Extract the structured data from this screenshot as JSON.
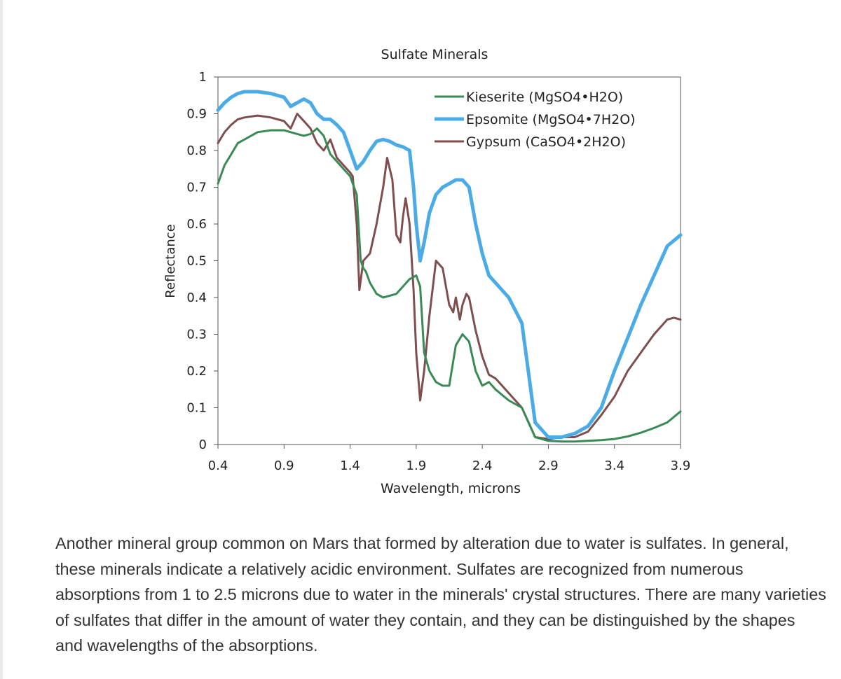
{
  "chart_data": {
    "type": "line",
    "title": "Sulfate Minerals",
    "xlabel": "Wavelength, microns",
    "ylabel": "Reflectance",
    "xlim": [
      0.4,
      3.9
    ],
    "ylim": [
      0,
      1
    ],
    "xticks": [
      0.4,
      0.9,
      1.4,
      1.9,
      2.4,
      2.9,
      3.4,
      3.9
    ],
    "xtick_labels": [
      "0.4",
      "0.9",
      "1.4",
      "1.9",
      "2.4",
      "2.9",
      "3.4",
      "3.9"
    ],
    "yticks": [
      0,
      0.1,
      0.2,
      0.3,
      0.4,
      0.5,
      0.6,
      0.7,
      0.8,
      0.9,
      1
    ],
    "ytick_labels": [
      "0",
      "0.1",
      "0.2",
      "0.3",
      "0.4",
      "0.5",
      "0.6",
      "0.7",
      "0.8",
      "0.9",
      "1"
    ],
    "grid": false,
    "legend_position": "top-right",
    "series": [
      {
        "name": "Kieserite (MgSO4•H2O)",
        "color": "#3a8a55",
        "x": [
          0.4,
          0.45,
          0.5,
          0.55,
          0.6,
          0.7,
          0.8,
          0.9,
          0.95,
          1.0,
          1.05,
          1.1,
          1.15,
          1.2,
          1.25,
          1.3,
          1.35,
          1.4,
          1.45,
          1.48,
          1.5,
          1.52,
          1.55,
          1.6,
          1.65,
          1.7,
          1.75,
          1.8,
          1.85,
          1.9,
          1.93,
          1.96,
          2.0,
          2.05,
          2.1,
          2.15,
          2.2,
          2.25,
          2.3,
          2.35,
          2.4,
          2.45,
          2.5,
          2.6,
          2.7,
          2.8,
          2.9,
          3.0,
          3.1,
          3.2,
          3.3,
          3.4,
          3.5,
          3.6,
          3.7,
          3.8,
          3.9
        ],
        "y": [
          0.71,
          0.76,
          0.79,
          0.82,
          0.83,
          0.85,
          0.855,
          0.855,
          0.85,
          0.845,
          0.84,
          0.845,
          0.86,
          0.84,
          0.79,
          0.77,
          0.75,
          0.73,
          0.68,
          0.5,
          0.48,
          0.47,
          0.44,
          0.41,
          0.4,
          0.405,
          0.41,
          0.43,
          0.45,
          0.46,
          0.43,
          0.25,
          0.2,
          0.17,
          0.16,
          0.16,
          0.27,
          0.3,
          0.28,
          0.2,
          0.16,
          0.17,
          0.15,
          0.12,
          0.1,
          0.02,
          0.01,
          0.008,
          0.008,
          0.01,
          0.012,
          0.015,
          0.022,
          0.032,
          0.045,
          0.06,
          0.09
        ]
      },
      {
        "name": "Epsomite (MgSO4•7H2O)",
        "color": "#4aabe6",
        "x": [
          0.4,
          0.45,
          0.5,
          0.55,
          0.6,
          0.7,
          0.8,
          0.9,
          0.95,
          1.0,
          1.05,
          1.1,
          1.15,
          1.2,
          1.25,
          1.3,
          1.35,
          1.4,
          1.45,
          1.5,
          1.55,
          1.6,
          1.65,
          1.7,
          1.75,
          1.8,
          1.85,
          1.88,
          1.9,
          1.93,
          1.96,
          2.0,
          2.05,
          2.1,
          2.15,
          2.2,
          2.25,
          2.3,
          2.35,
          2.4,
          2.45,
          2.5,
          2.6,
          2.7,
          2.8,
          2.9,
          3.0,
          3.1,
          3.2,
          3.3,
          3.4,
          3.5,
          3.6,
          3.7,
          3.8,
          3.9
        ],
        "y": [
          0.91,
          0.93,
          0.945,
          0.955,
          0.96,
          0.96,
          0.955,
          0.945,
          0.92,
          0.93,
          0.94,
          0.93,
          0.9,
          0.885,
          0.885,
          0.87,
          0.85,
          0.8,
          0.75,
          0.77,
          0.8,
          0.825,
          0.83,
          0.825,
          0.815,
          0.81,
          0.8,
          0.7,
          0.6,
          0.5,
          0.55,
          0.63,
          0.68,
          0.7,
          0.71,
          0.72,
          0.72,
          0.7,
          0.6,
          0.52,
          0.46,
          0.44,
          0.4,
          0.33,
          0.06,
          0.02,
          0.02,
          0.03,
          0.05,
          0.1,
          0.2,
          0.29,
          0.38,
          0.46,
          0.54,
          0.57
        ]
      },
      {
        "name": "Gypsum (CaSO4•2H2O)",
        "color": "#7f4e4e",
        "x": [
          0.4,
          0.45,
          0.5,
          0.55,
          0.6,
          0.7,
          0.8,
          0.9,
          0.95,
          1.0,
          1.05,
          1.1,
          1.15,
          1.2,
          1.25,
          1.3,
          1.35,
          1.4,
          1.42,
          1.45,
          1.47,
          1.5,
          1.55,
          1.6,
          1.65,
          1.68,
          1.72,
          1.75,
          1.78,
          1.8,
          1.82,
          1.85,
          1.88,
          1.9,
          1.93,
          1.96,
          2.0,
          2.05,
          2.1,
          2.15,
          2.18,
          2.2,
          2.23,
          2.25,
          2.28,
          2.3,
          2.35,
          2.4,
          2.45,
          2.5,
          2.6,
          2.7,
          2.8,
          2.9,
          3.0,
          3.1,
          3.2,
          3.3,
          3.4,
          3.5,
          3.6,
          3.7,
          3.8,
          3.85,
          3.9
        ],
        "y": [
          0.82,
          0.85,
          0.87,
          0.885,
          0.89,
          0.895,
          0.89,
          0.88,
          0.86,
          0.9,
          0.88,
          0.86,
          0.82,
          0.8,
          0.83,
          0.78,
          0.76,
          0.74,
          0.73,
          0.6,
          0.42,
          0.5,
          0.52,
          0.6,
          0.7,
          0.78,
          0.72,
          0.57,
          0.55,
          0.62,
          0.67,
          0.6,
          0.42,
          0.25,
          0.12,
          0.2,
          0.35,
          0.5,
          0.48,
          0.38,
          0.36,
          0.4,
          0.34,
          0.38,
          0.41,
          0.4,
          0.31,
          0.24,
          0.19,
          0.18,
          0.14,
          0.1,
          0.02,
          0.015,
          0.02,
          0.02,
          0.035,
          0.08,
          0.13,
          0.2,
          0.25,
          0.3,
          0.34,
          0.345,
          0.34
        ]
      }
    ]
  },
  "paragraph": "Another mineral group common on Mars that formed by alteration due to water is sulfates. In general, these minerals indicate a relatively acidic environment. Sulfates are recognized from numerous absorptions from 1 to 2.5 microns due to water in the minerals' crystal structures. There are many varieties of sulfates that differ in the amount of water they contain, and they can be distinguished by the shapes and wavelengths of the absorptions."
}
